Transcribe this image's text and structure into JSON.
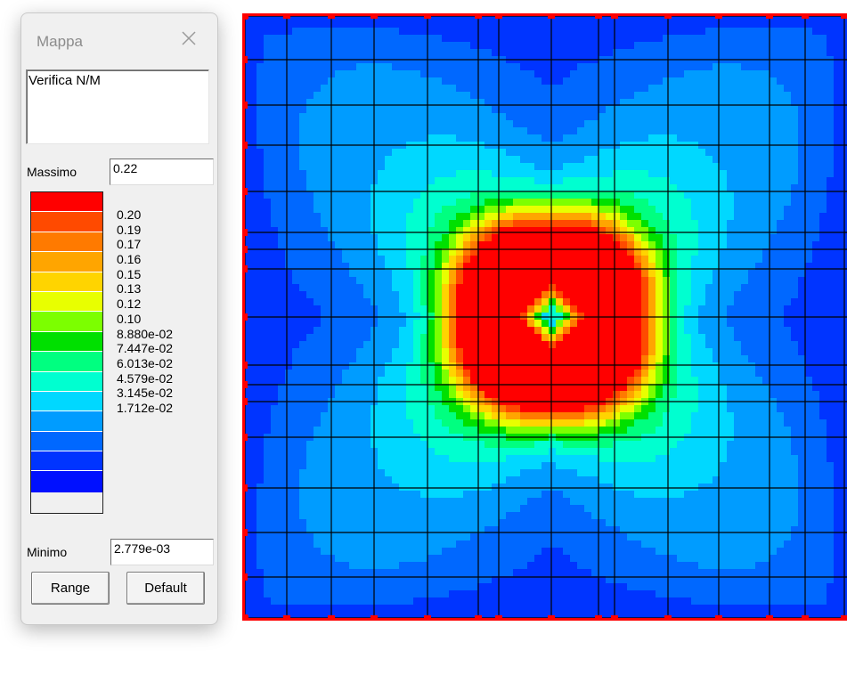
{
  "panel": {
    "title": "Mappa",
    "description": "Verifica N/M",
    "max_label": "Massimo",
    "max_value": "0.22",
    "min_label": "Minimo",
    "min_value": "2.779e-03",
    "range_button": "Range",
    "default_button": "Default",
    "legend_values": [
      "0.20",
      "0.19",
      "0.17",
      "0.16",
      "0.15",
      "0.13",
      "0.12",
      "0.10",
      "8.880e-02",
      "7.447e-02",
      "6.013e-02",
      "4.579e-02",
      "3.145e-02",
      "1.712e-02"
    ],
    "legend_colors": [
      "#ff0000",
      "#ff4a00",
      "#ff7a00",
      "#ffa500",
      "#ffd400",
      "#e8ff00",
      "#7cff00",
      "#00e000",
      "#00ff80",
      "#00ffd0",
      "#00d8ff",
      "#009cff",
      "#0068ff",
      "#0034ff",
      "#0010ff"
    ]
  },
  "map": {
    "grid_color": "#000000",
    "border_color": "#ff0000"
  }
}
